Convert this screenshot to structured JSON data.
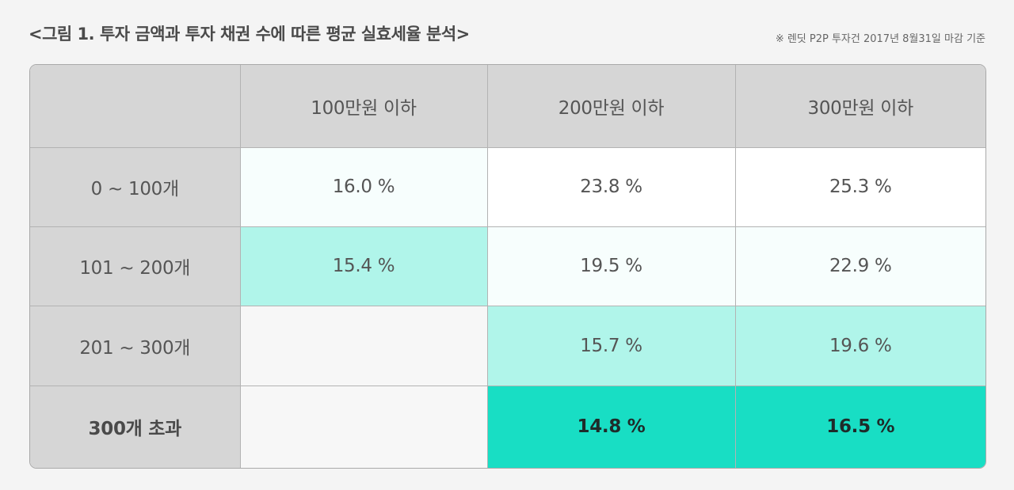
{
  "title": "<그림 1. 투자 금액과 투자 채권 수에 따른 평균 실효세율 분석>",
  "note": "※ 렌딧 P2P 투자건  2017년 8월31일 마감 기준",
  "chart_data": {
    "type": "table",
    "columns": [
      "",
      "100만원 이하",
      "200만원 이하",
      "300만원 이하"
    ],
    "rows": [
      {
        "label": "0 ~ 100개",
        "values": [
          "16.0 %",
          "23.8 %",
          "25.3 %"
        ]
      },
      {
        "label": "101 ~ 200개",
        "values": [
          "15.4 %",
          "19.5 %",
          "22.9 %"
        ]
      },
      {
        "label": "201 ~ 300개",
        "values": [
          "",
          "15.7 %",
          "19.6 %"
        ]
      },
      {
        "label": "300개 초과",
        "values": [
          "",
          "14.8 %",
          "16.5 %"
        ]
      }
    ],
    "cell_colors": [
      [
        "#f7fefd",
        "#ffffff",
        "#ffffff"
      ],
      [
        "#b0f5ea",
        "#f7fefd",
        "#f7fefd"
      ],
      [
        "#f7f7f7",
        "#b0f5ea",
        "#b0f5ea"
      ],
      [
        "#f7f7f7",
        "#18dec4",
        "#18dec4"
      ]
    ],
    "header_color": "#d6d6d6"
  }
}
